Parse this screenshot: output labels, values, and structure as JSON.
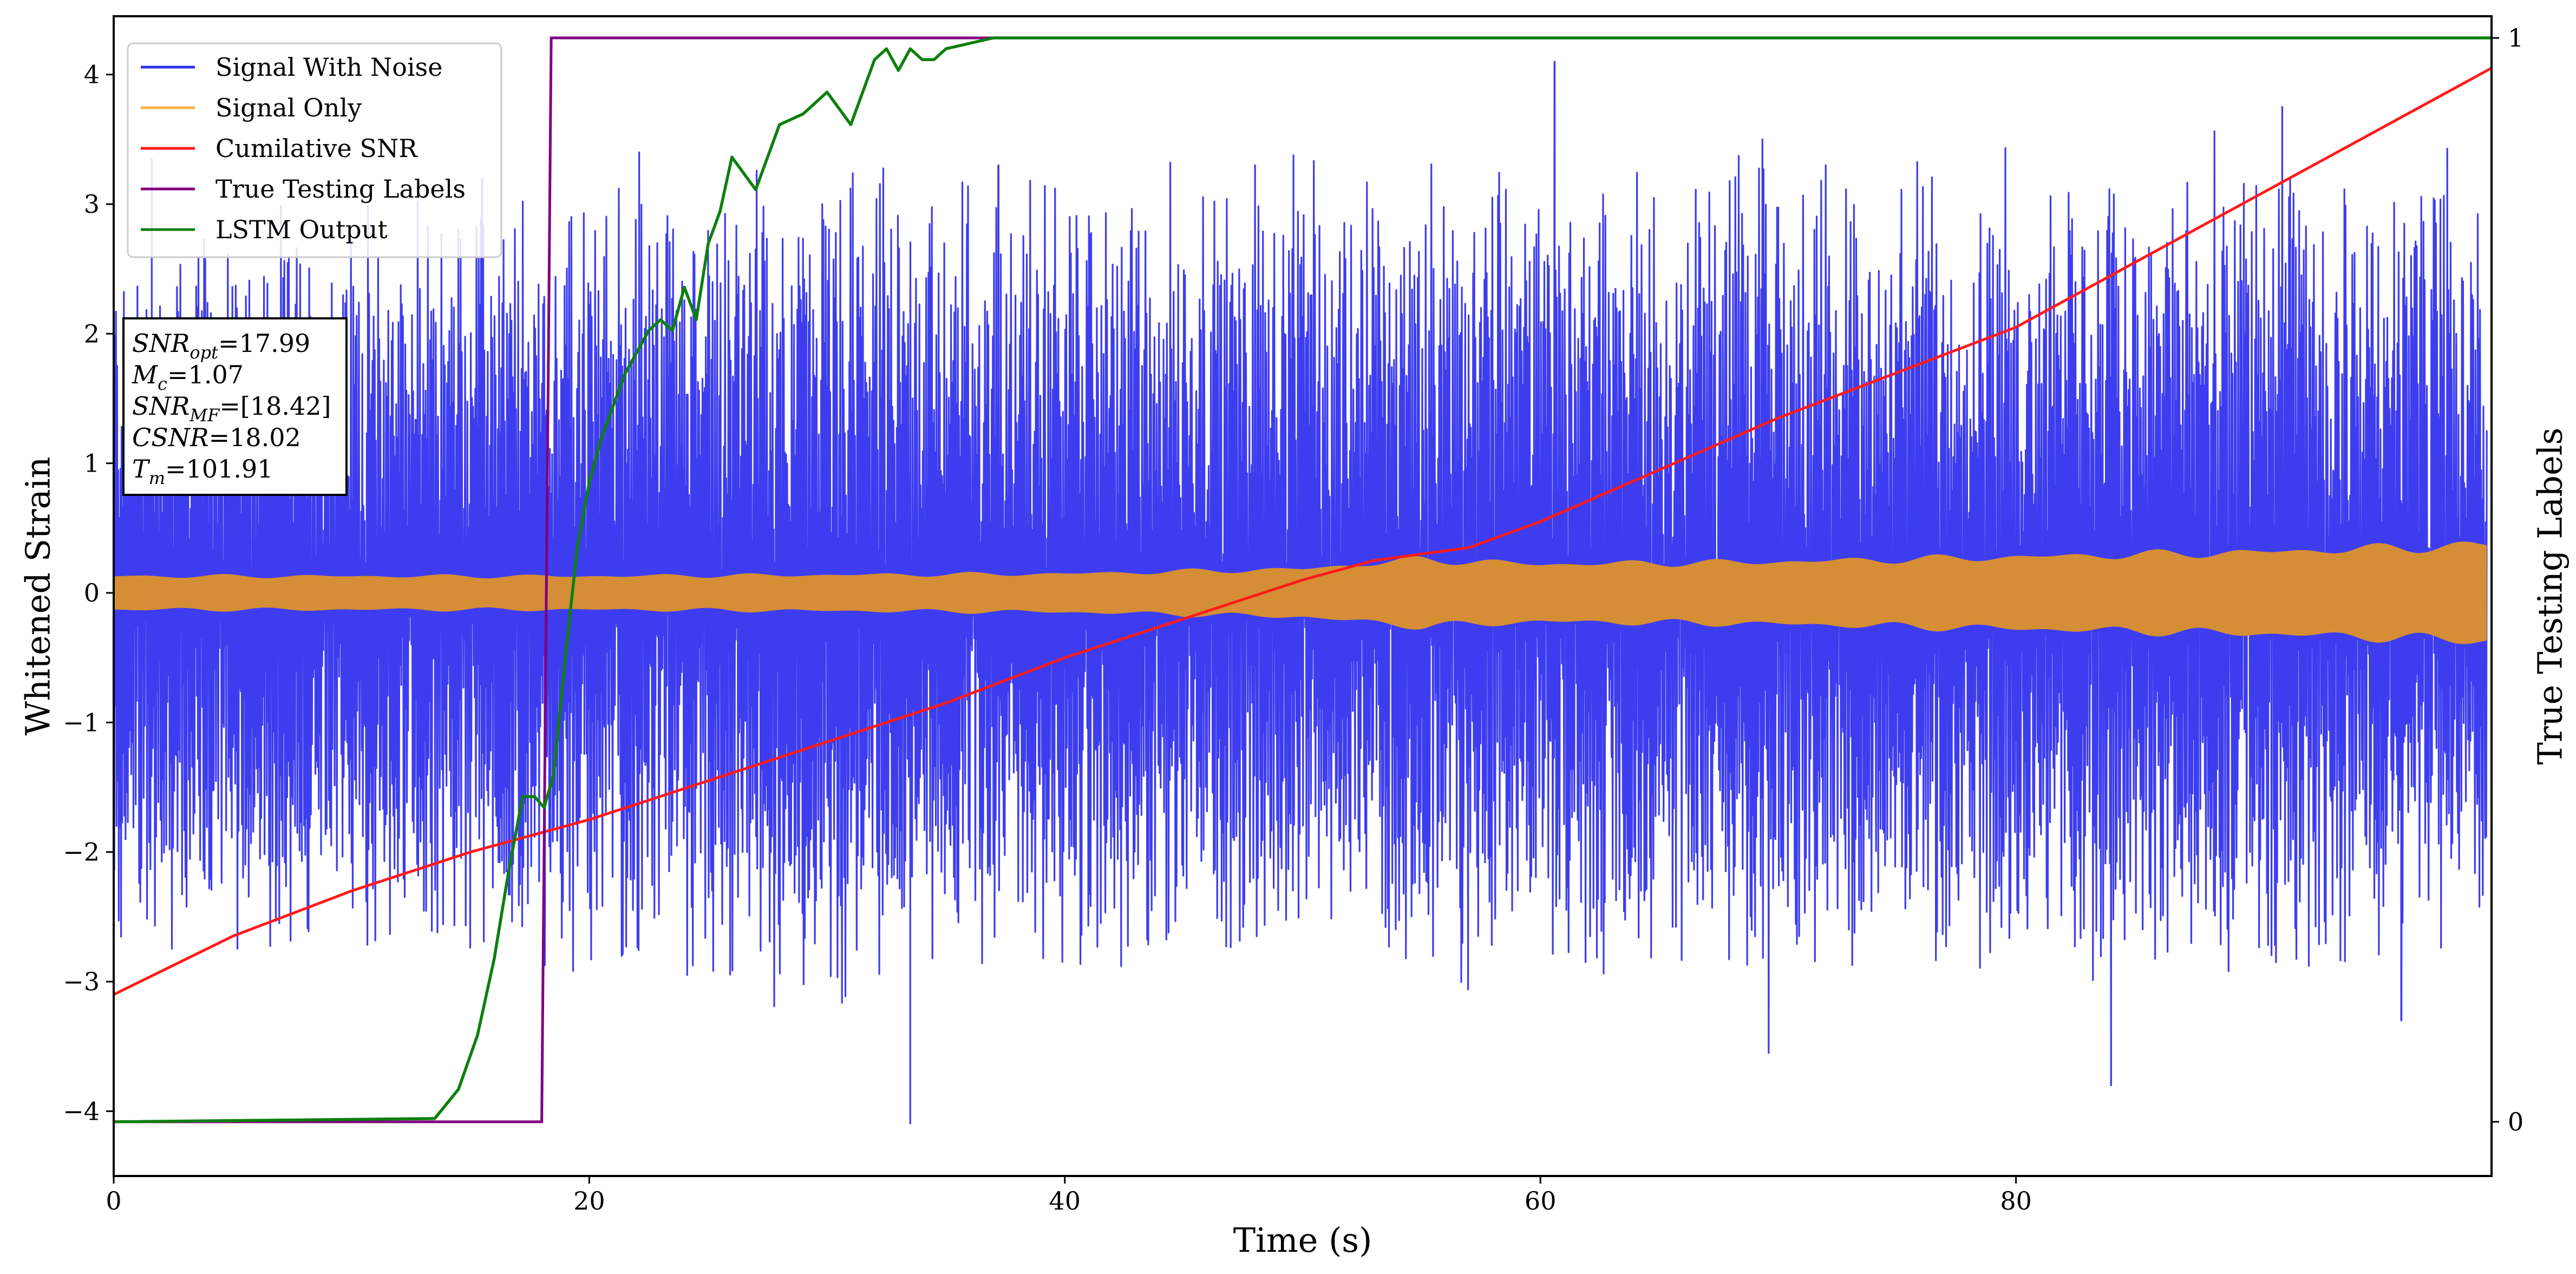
{
  "chart_data": {
    "type": "line",
    "xlabel": "Time (s)",
    "ylabel": "Whitened Strain",
    "ylabel_right": "True Testing Labels",
    "xlim": [
      0,
      100
    ],
    "ylim": [
      -4.5,
      4.45
    ],
    "ylim_right": [
      -0.05,
      1.02
    ],
    "x_ticks": [
      0,
      20,
      40,
      60,
      80
    ],
    "x_tick_labels": [
      "0",
      "20",
      "40",
      "60",
      "80"
    ],
    "y_ticks": [
      -4,
      -3,
      -2,
      -1,
      0,
      1,
      2,
      3,
      4
    ],
    "y_tick_labels": [
      "−4",
      "−3",
      "−2",
      "−1",
      "0",
      "1",
      "2",
      "3",
      "4"
    ],
    "y_right_ticks": [
      0,
      1
    ],
    "y_right_tick_labels": [
      "0",
      "1"
    ],
    "grid": false,
    "legend_position": "top-left",
    "legend": [
      {
        "label": "Signal With Noise",
        "color": "#3333ee"
      },
      {
        "label": "Signal Only",
        "color": "#f5b342"
      },
      {
        "label": "Cumilative SNR",
        "color": "#ff1a1a"
      },
      {
        "label": "True Testing Labels",
        "color": "#800080"
      },
      {
        "label": "LSTM Output",
        "color": "#0d800d"
      }
    ],
    "annotation": {
      "lines": [
        {
          "var": "SNR",
          "sub": "opt",
          "rest": "=17.99"
        },
        {
          "var": "M",
          "sub": "c",
          "rest": "=1.07"
        },
        {
          "var": "SNR",
          "sub": "MF",
          "rest": "=[18.42]"
        },
        {
          "var": "CSNR",
          "sub": "",
          "rest": "=18.02"
        },
        {
          "var": "T",
          "sub": "m",
          "rest": "=101.91"
        }
      ]
    },
    "series": [
      {
        "name": "Signal With Noise",
        "axis": "left",
        "color": "#3333ee",
        "rendering": "dense noisy waveform",
        "approx_envelope": [
          [
            0,
            -2.4,
            2.4
          ],
          [
            10,
            -2.4,
            2.5
          ],
          [
            20,
            -2.5,
            2.7
          ],
          [
            30,
            -2.7,
            2.8
          ],
          [
            40,
            -2.5,
            2.8
          ],
          [
            50,
            -2.5,
            2.8
          ],
          [
            60,
            -2.6,
            2.9
          ],
          [
            70,
            -2.6,
            2.9
          ],
          [
            80,
            -2.6,
            2.9
          ],
          [
            90,
            -2.6,
            2.9
          ],
          [
            99.8,
            -2.2,
            2.8
          ]
        ],
        "peaks": [
          {
            "x": 1.6,
            "y": 3.35
          },
          {
            "x": 33.5,
            "y": -4.1
          },
          {
            "x": 60.6,
            "y": 4.1
          },
          {
            "x": 69.6,
            "y": -3.55
          },
          {
            "x": 84.0,
            "y": -3.8
          },
          {
            "x": 91.2,
            "y": 3.75
          },
          {
            "x": 15.5,
            "y": 3.2
          },
          {
            "x": 22.1,
            "y": 3.4
          },
          {
            "x": 37.2,
            "y": 3.3
          },
          {
            "x": 48.0,
            "y": 3.3
          },
          {
            "x": 72.0,
            "y": 3.3
          },
          {
            "x": 96.2,
            "y": -3.3
          }
        ]
      },
      {
        "name": "Signal Only",
        "axis": "left",
        "color": "#d58e36",
        "rendering": "filled oscillation band",
        "approx_envelope": [
          [
            0,
            0.14
          ],
          [
            20,
            0.14
          ],
          [
            40,
            0.16
          ],
          [
            50,
            0.2
          ],
          [
            55,
            0.28
          ],
          [
            60,
            0.24
          ],
          [
            70,
            0.26
          ],
          [
            80,
            0.3
          ],
          [
            90,
            0.34
          ],
          [
            99.8,
            0.4
          ]
        ]
      },
      {
        "name": "Cumilative SNR",
        "axis": "left",
        "color": "#ff1a1a",
        "x": [
          0,
          5,
          10,
          15,
          20,
          25,
          30,
          35,
          40,
          45,
          50,
          53,
          57,
          60,
          65,
          70,
          75,
          80,
          85,
          90,
          95,
          100
        ],
        "y": [
          -3.1,
          -2.65,
          -2.3,
          -2.0,
          -1.75,
          -1.45,
          -1.15,
          -0.85,
          -0.5,
          -0.2,
          0.1,
          0.25,
          0.35,
          0.55,
          0.95,
          1.35,
          1.7,
          2.05,
          2.55,
          3.05,
          3.55,
          4.05
        ]
      },
      {
        "name": "True Testing Labels",
        "axis": "right",
        "color": "#800080",
        "x": [
          0,
          18.0,
          18.4,
          100
        ],
        "y": [
          0,
          0,
          1,
          1
        ]
      },
      {
        "name": "LSTM Output",
        "axis": "right",
        "color": "#0d800d",
        "x": [
          0,
          13.5,
          14.5,
          15.3,
          16.0,
          16.6,
          17.2,
          17.7,
          18.1,
          18.5,
          19.0,
          19.5,
          20.0,
          20.5,
          21.0,
          21.5,
          22.0,
          22.5,
          23.0,
          23.5,
          24.0,
          24.5,
          25.0,
          25.5,
          26.0,
          27.0,
          28.0,
          29.0,
          30.0,
          31.0,
          32.0,
          32.5,
          33.0,
          33.5,
          34.0,
          34.5,
          35.0,
          36.0,
          37.0,
          38.0,
          39.0,
          40.0,
          45.0,
          50.0,
          100.0
        ],
        "y": [
          0,
          0.003,
          0.03,
          0.08,
          0.15,
          0.23,
          0.3,
          0.3,
          0.29,
          0.32,
          0.43,
          0.53,
          0.59,
          0.63,
          0.66,
          0.69,
          0.71,
          0.73,
          0.74,
          0.73,
          0.77,
          0.74,
          0.81,
          0.84,
          0.89,
          0.86,
          0.92,
          0.93,
          0.95,
          0.92,
          0.98,
          0.99,
          0.97,
          0.99,
          0.98,
          0.98,
          0.99,
          0.995,
          1.0,
          1.0,
          1.0,
          1.0,
          1.0,
          1.0,
          1.0
        ]
      }
    ]
  }
}
